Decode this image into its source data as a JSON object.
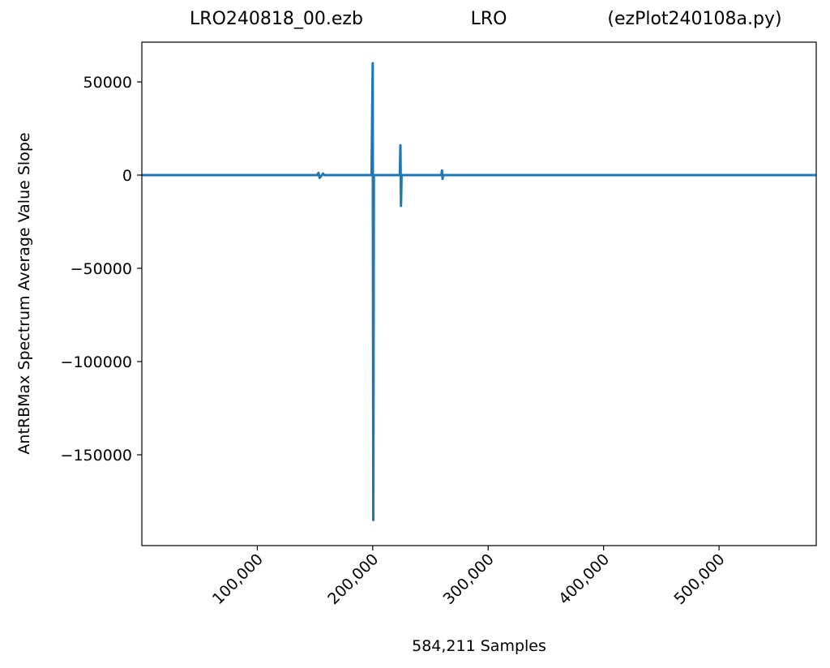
{
  "chart_data": {
    "type": "line",
    "title": [
      "LRO240818_00.ezb",
      "LRO",
      "(ezPlot240108a.py)"
    ],
    "x_label": "584,211 Samples",
    "y_label": "AntRBMax Spectrum Average Value Slope",
    "series": [
      {
        "name": "AntRBMax Spectrum Average Value Slope",
        "color": "#1f77b4",
        "x": [
          0,
          152000,
          153000,
          154000,
          157000,
          158000,
          199000,
          200000,
          200500,
          201000,
          223500,
          224000,
          224500,
          225000,
          259500,
          260000,
          260500,
          261000,
          584210
        ],
        "values": [
          0,
          0,
          1200,
          -1500,
          800,
          0,
          0,
          60000,
          -185000,
          0,
          0,
          16000,
          -16500,
          0,
          0,
          2500,
          -2000,
          0,
          0
        ]
      }
    ],
    "xlim": [
      0,
      584210
    ],
    "xticks": [
      {
        "value": 100000,
        "label": "100,000"
      },
      {
        "value": 200000,
        "label": "200,000"
      },
      {
        "value": 300000,
        "label": "300,000"
      },
      {
        "value": 400000,
        "label": "400,000"
      },
      {
        "value": 500000,
        "label": "500,000"
      }
    ],
    "ylim": [
      -198700,
      71300
    ],
    "yticks": [
      {
        "value": -150000,
        "label": "−150000"
      },
      {
        "value": -100000,
        "label": "−100000"
      },
      {
        "value": -50000,
        "label": "−50000"
      },
      0,
      50000
    ]
  }
}
